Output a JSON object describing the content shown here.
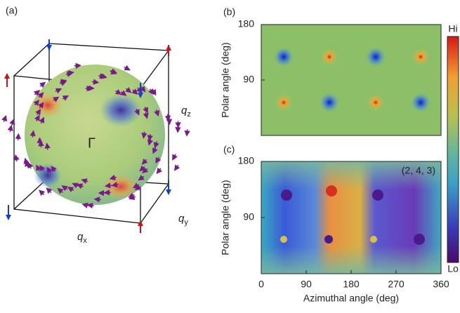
{
  "panel_a": {
    "label": "(a)",
    "gamma": "Γ",
    "axes": [
      {
        "base": "q",
        "sub": "x"
      },
      {
        "base": "q",
        "sub": "y"
      },
      {
        "base": "q",
        "sub": "z"
      }
    ]
  },
  "panel_b": {
    "label": "(b)",
    "ylabel": "Polar angle (deg)",
    "ylim": [
      0,
      180
    ],
    "yticks": [
      90,
      180
    ]
  },
  "panel_c": {
    "label": "(c)",
    "ylabel": "Polar angle (deg)",
    "annotation": "(2, 4, 3)",
    "xlabel": "Azimuthal angle (deg)",
    "xlim": [
      0,
      360
    ],
    "xticks": [
      0,
      90,
      180,
      270,
      360
    ],
    "ylim": [
      0,
      180
    ],
    "yticks": [
      90,
      180
    ]
  },
  "colorbar": {
    "max_label": "Hi",
    "min_label": "Lo"
  }
}
